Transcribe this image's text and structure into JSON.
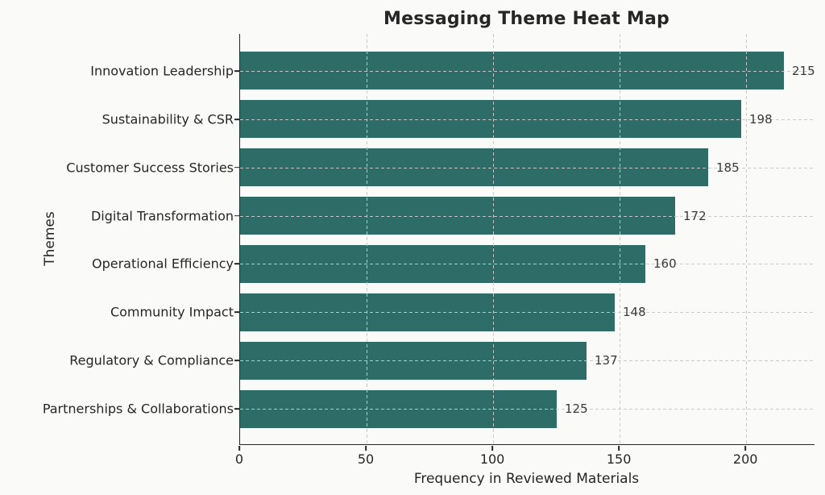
{
  "chart_data": {
    "type": "bar",
    "orientation": "horizontal",
    "title": "Messaging Theme Heat Map",
    "xlabel": "Frequency in Reviewed Materials",
    "ylabel": "Themes",
    "categories": [
      "Innovation Leadership",
      "Sustainability & CSR",
      "Customer Success Stories",
      "Digital Transformation",
      "Operational Efficiency",
      "Community Impact",
      "Regulatory & Compliance",
      "Partnerships & Collaborations"
    ],
    "values": [
      215,
      198,
      185,
      172,
      160,
      148,
      137,
      125
    ],
    "value_labels_shown": true,
    "xticks": [
      0,
      50,
      100,
      150,
      200
    ],
    "xlim": [
      0,
      227
    ],
    "grid": "dashed-both-axes",
    "legend": "none",
    "bar_color": "#2e6c68",
    "background_color": "#fafaf8",
    "text_color": "#262626",
    "value_label_color": "#3a3a3a",
    "gridline_color": "#c8c8c8"
  }
}
